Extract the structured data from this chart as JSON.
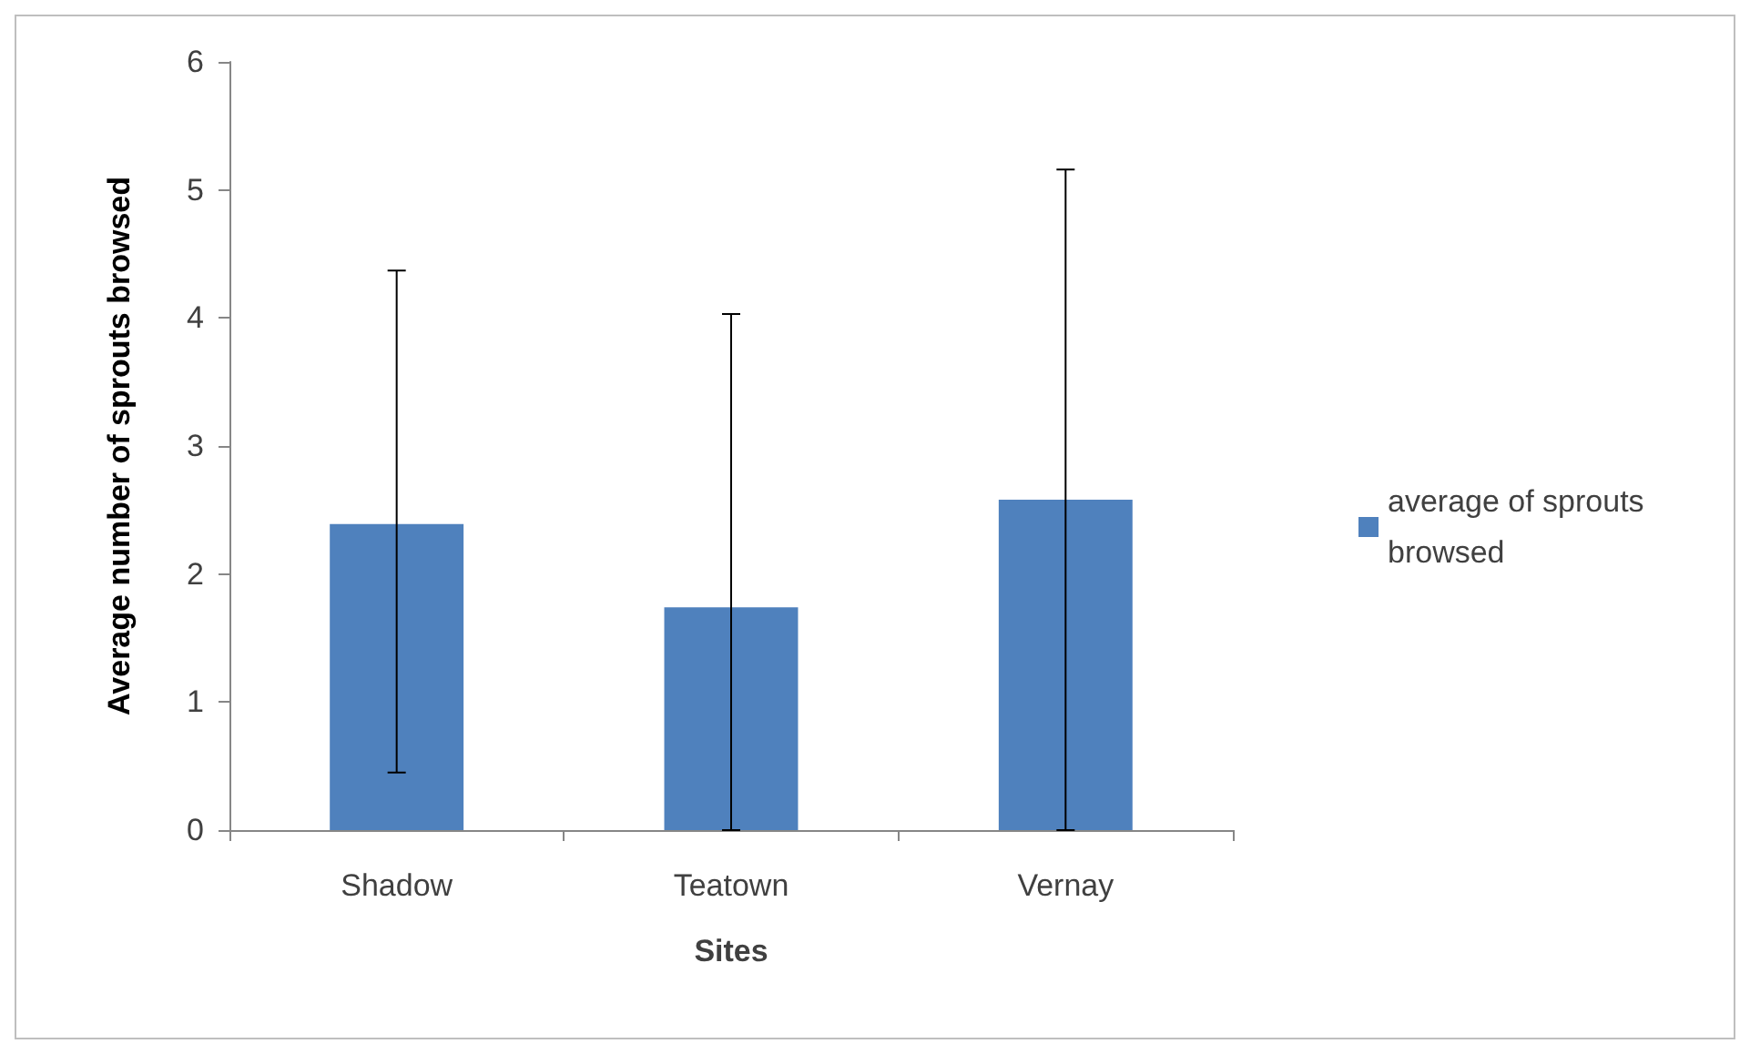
{
  "chart_data": {
    "type": "bar",
    "xlabel": "Sites",
    "ylabel": "Average number of sprouts browsed",
    "categories": [
      "Shadow",
      "Teatown",
      "Vernay"
    ],
    "series": [
      {
        "name": "average of sprouts browsed",
        "color": "#4f81bd",
        "values": [
          2.39,
          1.74,
          2.58
        ],
        "errors": [
          [
            0.45,
            4.37
          ],
          [
            0,
            4.03
          ],
          [
            0,
            5.16
          ]
        ]
      }
    ],
    "ylim": [
      0,
      6
    ],
    "yticks": [
      0,
      1,
      2,
      3,
      4,
      5,
      6
    ],
    "grid": false,
    "legend": "right"
  }
}
